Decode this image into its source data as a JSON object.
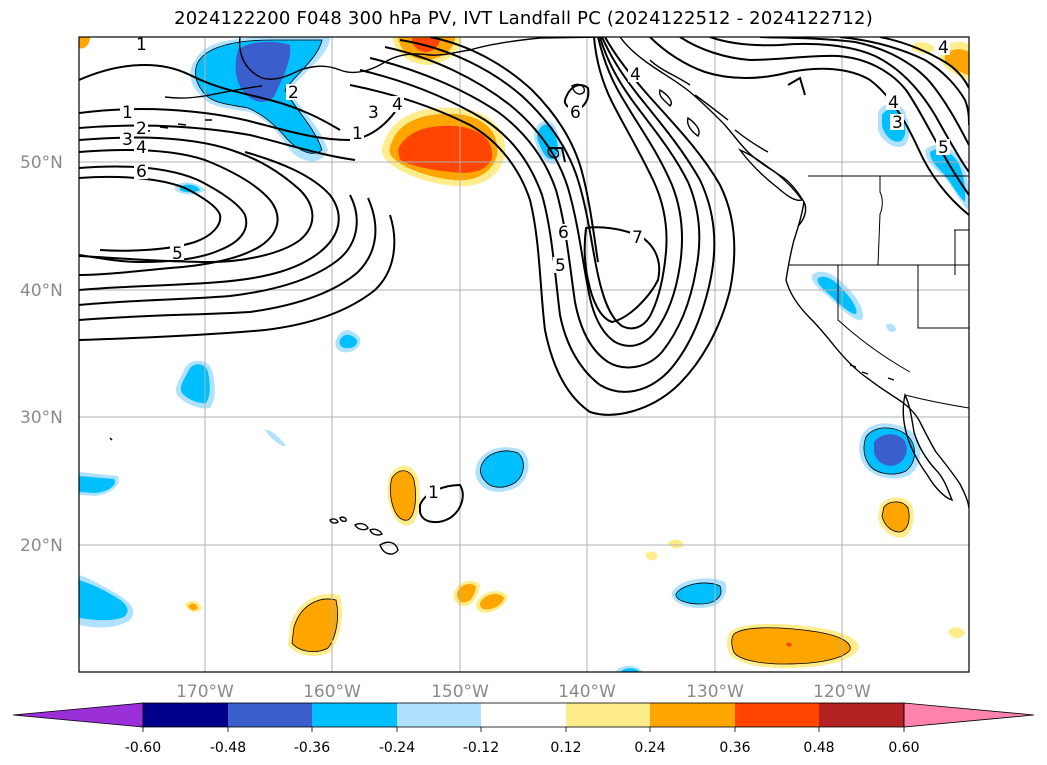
{
  "title": "2024122200 F048 300 hPa PV, IVT Landfall PC (2024122512 - 2024122712)",
  "lat_labels": [
    "50°N",
    "40°N",
    "30°N",
    "20°N"
  ],
  "lon_labels": [
    "170°W",
    "160°W",
    "150°W",
    "140°W",
    "130°W",
    "120°W"
  ],
  "colorbar": {
    "colors": [
      "#9b30d9",
      "#00008b",
      "#3a5fcd",
      "#00bfff",
      "#b0e2ff",
      "#ffffff",
      "#ffec8b",
      "#ffa500",
      "#ff4500",
      "#b22222",
      "#ff83ac"
    ],
    "ticks": [
      "-0.60",
      "-0.48",
      "-0.36",
      "-0.24",
      "-0.12",
      "0.12",
      "0.24",
      "0.36",
      "0.48",
      "0.60"
    ]
  },
  "contour_labels": [
    "1",
    "1",
    "2",
    "3",
    "4",
    "6",
    "5",
    "2",
    "3",
    "4",
    "1",
    "6",
    "6",
    "5",
    "7",
    "4",
    "4",
    "3",
    "5",
    "4",
    "1"
  ]
}
